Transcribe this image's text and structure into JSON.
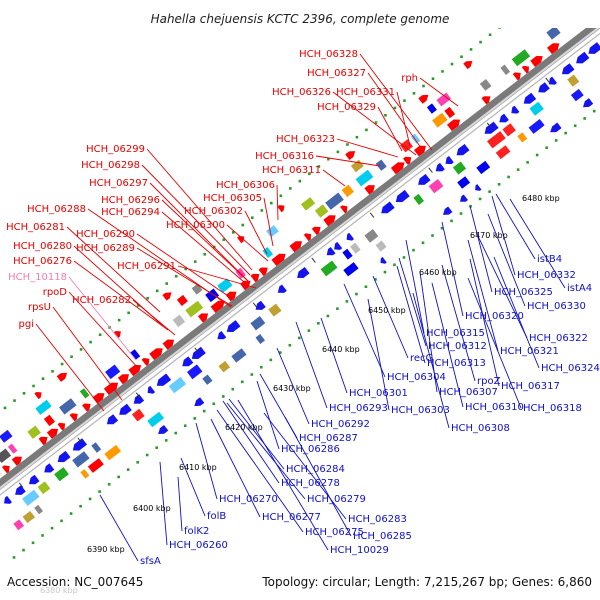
{
  "title": "Hahella chejuensis KCTC 2396, complete genome",
  "footer": {
    "accession_text": "Accession: NC_007645",
    "summary_text": "Topology: circular; Length: 7,215,267 bp; Genes: 6,860"
  },
  "colors": {
    "forward_gene_labels": "#e60000",
    "reverse_gene_labels": "#1010c8",
    "rna_gene_labels": "#f080b0",
    "backbone": "#7a7a7a",
    "dotted_track": "#2a9a2a"
  },
  "scale_labels": [
    {
      "text": "6380 kbp",
      "faded": true
    },
    {
      "text": "6390 kbp"
    },
    {
      "text": "6400 kbp"
    },
    {
      "text": "6410 kbp"
    },
    {
      "text": "6420 kbp"
    },
    {
      "text": "6430 kbp"
    },
    {
      "text": "6440 kbp"
    },
    {
      "text": "6450 kbp"
    },
    {
      "text": "6460 kbp"
    },
    {
      "text": "6470 kbp"
    },
    {
      "text": "6480 kbp"
    }
  ],
  "forward_labels": [
    "HCH_06328",
    "HCH_06327",
    "rph",
    "HCH_06326",
    "HCH_06331",
    "HCH_06329",
    "HCH_06323",
    "HCH_06316",
    "HCH_06299",
    "HCH_06311",
    "HCH_06298",
    "HCH_06297",
    "HCH_06306",
    "HCH_06296",
    "HCH_06305",
    "HCH_06288",
    "HCH_06294",
    "HCH_06302",
    "HCH_06300",
    "HCH_06281",
    "HCH_06290",
    "HCH_06280",
    "HCH_06289",
    "HCH_06276",
    "HCH_06291",
    "HCH_10118",
    "rpoD",
    "HCH_06282",
    "rpsU",
    "pgi"
  ],
  "reverse_labels": [
    "istB4",
    "HCH_06332",
    "istA4",
    "HCH_06325",
    "HCH_06330",
    "HCH_06320",
    "HCH_06322",
    "HCH_06315",
    "HCH_06321",
    "HCH_06312",
    "HCH_06324",
    "recG",
    "HCH_06313",
    "HCH_06304",
    "rpoZ",
    "HCH_06317",
    "HCH_06301",
    "HCH_06307",
    "HCH_06293",
    "HCH_06310",
    "HCH_06318",
    "HCH_06303",
    "HCH_06292",
    "HCH_06308",
    "HCH_06287",
    "HCH_06286",
    "HCH_06284",
    "HCH_06278",
    "HCH_06279",
    "HCH_06270",
    "HCH_06277",
    "folB",
    "HCH_06283",
    "HCH_06275",
    "HCH_06285",
    "folK2",
    "HCH_10029",
    "HCH_06260",
    "sfsA"
  ]
}
